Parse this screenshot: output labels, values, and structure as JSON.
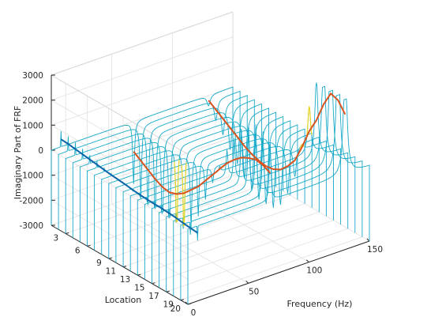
{
  "chart_data": {
    "type": "line",
    "subtype": "3d-waterfall",
    "title": "",
    "zlabel": "Imaginary Part of FRF",
    "xlabel": "Frequency (Hz)",
    "ylabel": "Location",
    "xlim": [
      0,
      150
    ],
    "ylim": [
      1,
      20
    ],
    "zlim": [
      -3000,
      3000
    ],
    "x_ticks": [
      0,
      50,
      100,
      150
    ],
    "y_ticks": [
      3,
      6,
      9,
      11,
      13,
      15,
      17,
      19,
      20
    ],
    "z_ticks": [
      -3000,
      -2000,
      -1000,
      0,
      1000,
      2000,
      3000
    ],
    "grid": true,
    "modes": [
      {
        "freq": 8,
        "amplitudes": [
          300,
          280,
          240,
          200,
          160,
          120,
          80,
          40,
          10,
          -20,
          -60,
          -90,
          -110,
          -120,
          -130,
          -150,
          -180,
          -220,
          -250,
          -280
        ]
      },
      {
        "freq": 68,
        "amplitudes": [
          -1200,
          -1400,
          -1600,
          -1800,
          -1950,
          -2000,
          -1900,
          -1700,
          -1400,
          -1100,
          -700,
          -300,
          100,
          500,
          800,
          1050,
          1200,
          1300,
          1250,
          1100
        ]
      },
      {
        "freq": 130,
        "amplitudes": [
          -200,
          -400,
          -600,
          -800,
          -1000,
          -1200,
          -1350,
          -1450,
          -1500,
          -1450,
          -1300,
          -1000,
          -600,
          100,
          900,
          1500,
          2300,
          2900,
          2800,
          2400
        ]
      }
    ],
    "colors": {
      "fast_lines": "#17a9c9",
      "peak_highlight": "#ebd622",
      "mode1_path": "#0b64a6",
      "mode2_path": "#d9531e",
      "mode3_path": "#d9531e",
      "axes": "#262626",
      "grid": "#e6e6e6"
    }
  }
}
